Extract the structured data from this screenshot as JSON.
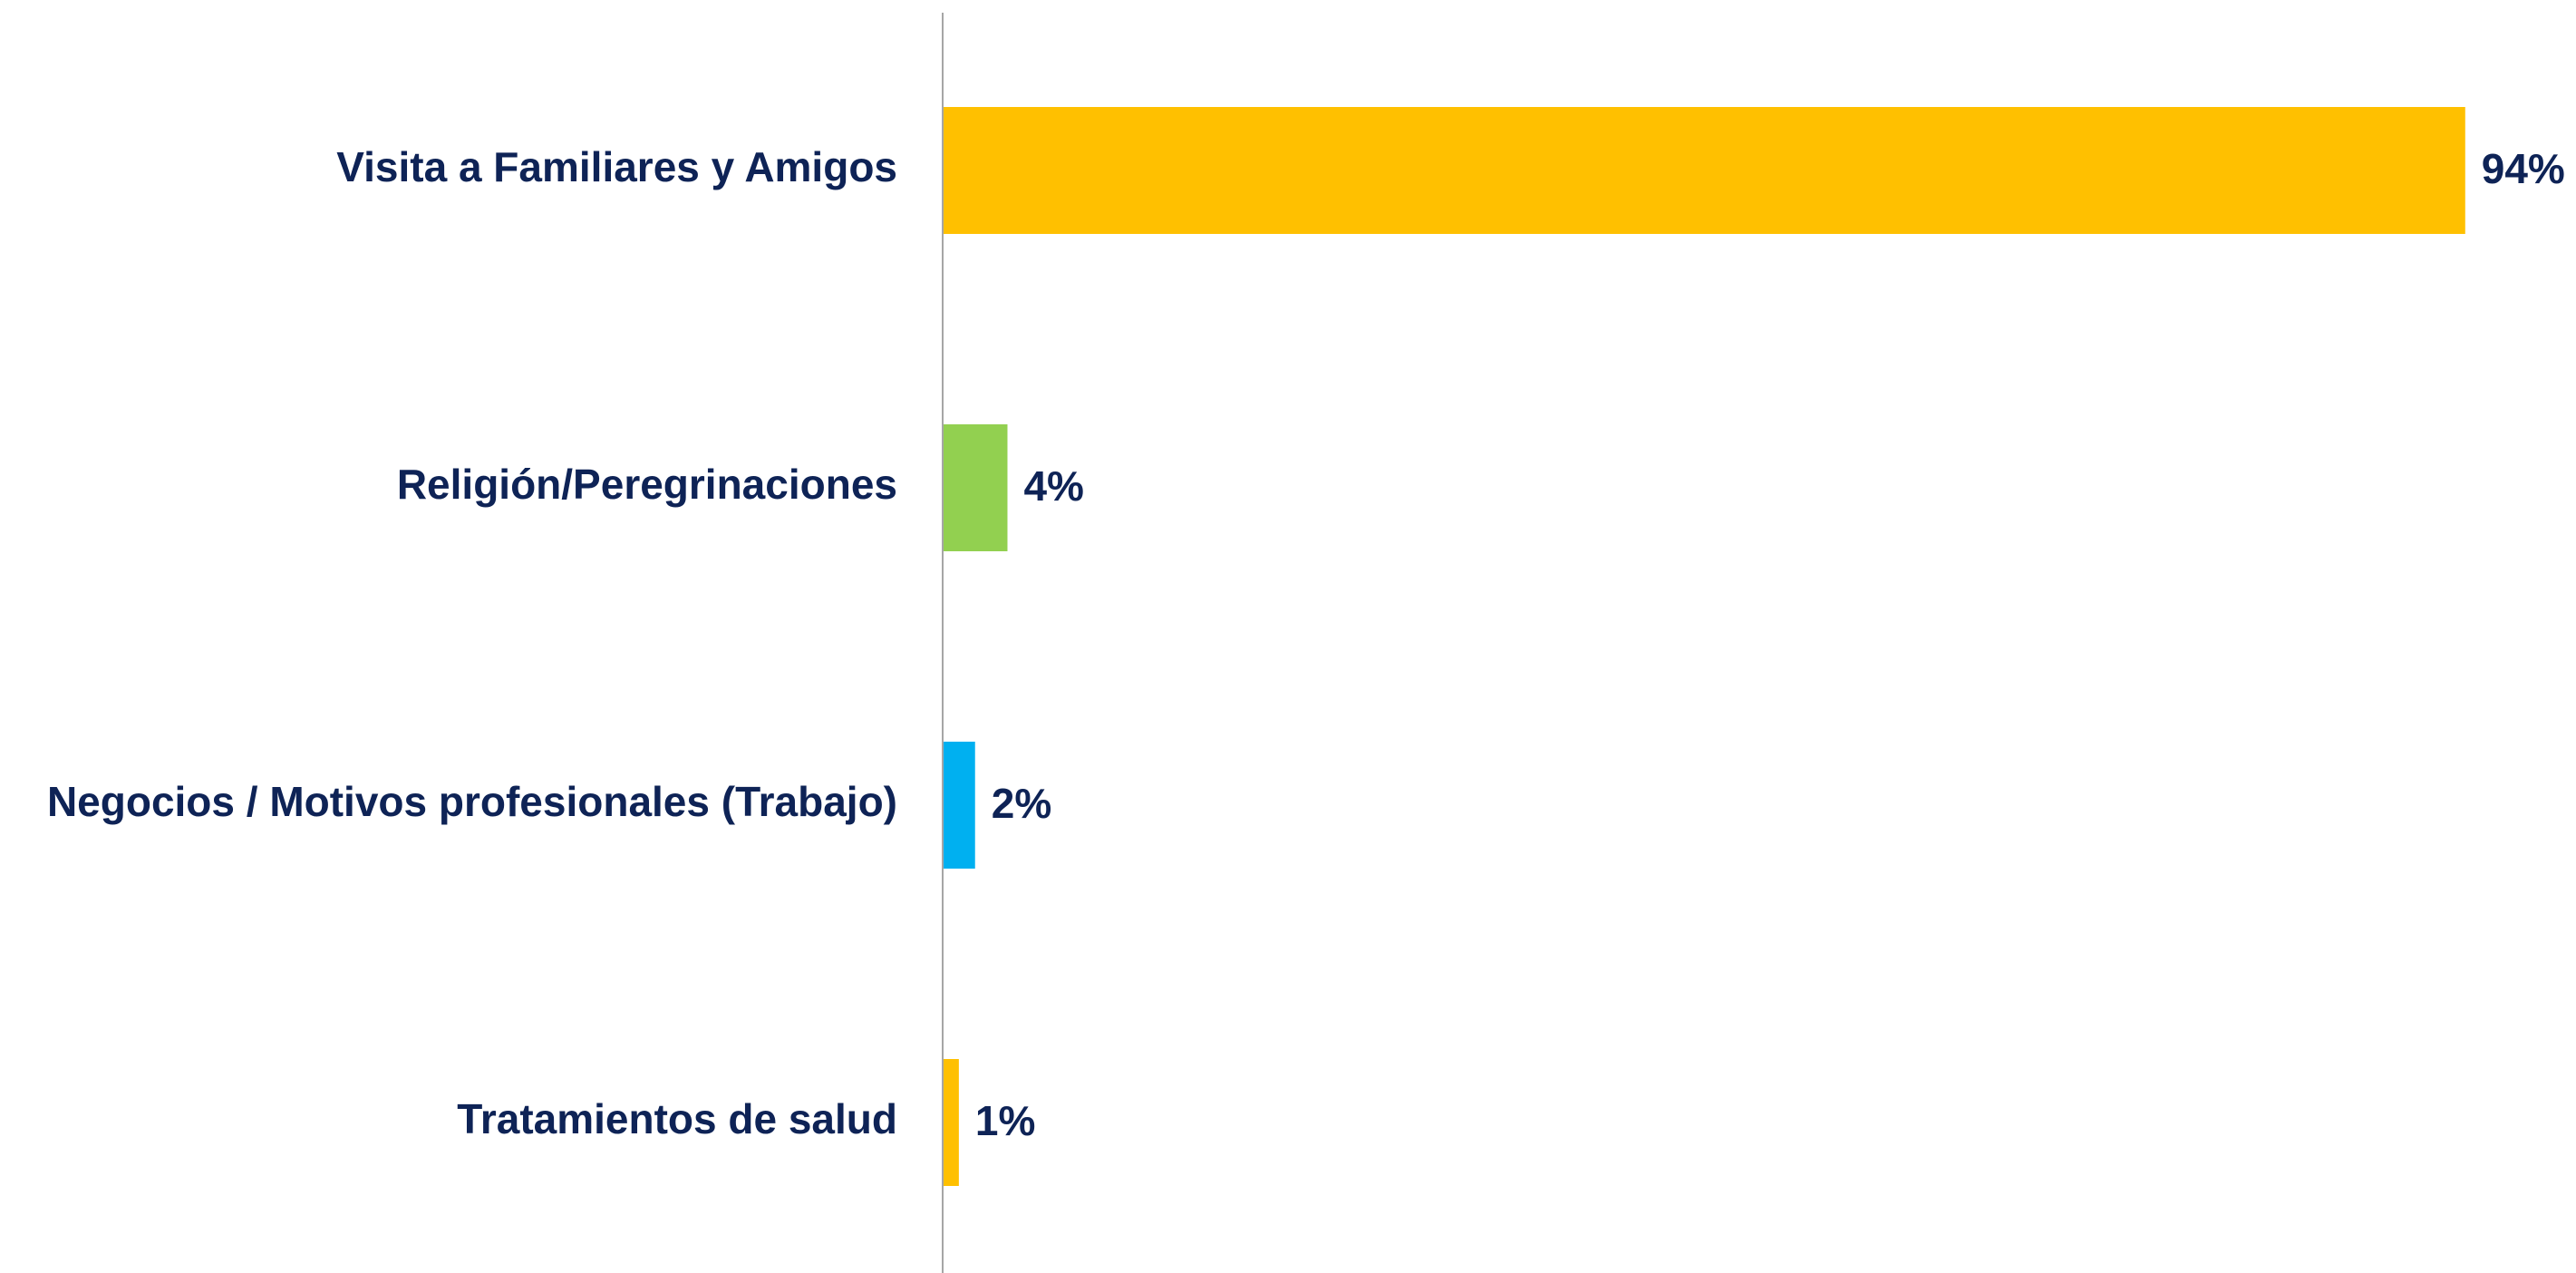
{
  "chart_data": {
    "type": "hbar",
    "categories": [
      "Visita a Familiares y Amigos",
      "Religión/Peregrinaciones",
      "Negocios / Motivos profesionales (Trabajo)",
      "Tratamientos de salud"
    ],
    "values": [
      94,
      4,
      2,
      1
    ],
    "value_labels": [
      "94%",
      "4%",
      "2%",
      "1%"
    ],
    "colors": [
      "#ffc000",
      "#92d050",
      "#00b0f0",
      "#ffc000"
    ],
    "xlim": [
      0,
      100
    ]
  }
}
